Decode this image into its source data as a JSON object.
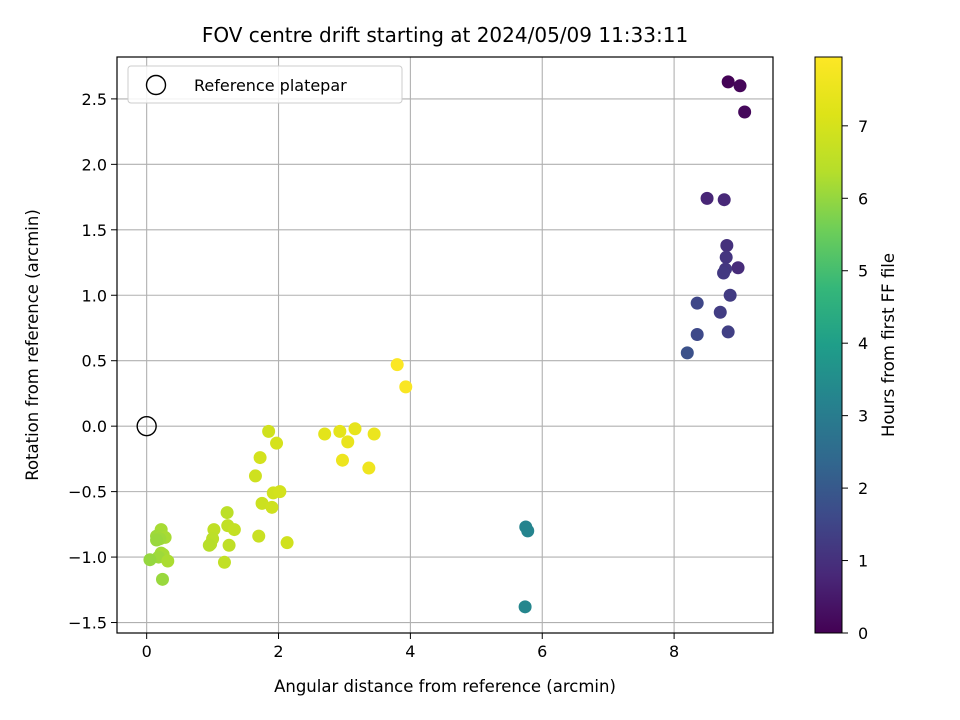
{
  "chart_data": {
    "type": "scatter",
    "title": "FOV centre drift starting at 2024/05/09 11:33:11",
    "xlabel": "Angular distance from reference (arcmin)",
    "ylabel": "Rotation from reference (arcmin)",
    "xlim": [
      -0.45,
      9.5
    ],
    "ylim": [
      -1.58,
      2.82
    ],
    "xticks": [
      0,
      2,
      4,
      6,
      8
    ],
    "xtick_labels": [
      "0",
      "2",
      "4",
      "6",
      "8"
    ],
    "yticks": [
      -1.5,
      -1.0,
      -0.5,
      0.0,
      0.5,
      1.0,
      1.5,
      2.0,
      2.5
    ],
    "ytick_labels": [
      "−1.5",
      "−1.0",
      "−0.5",
      "0.0",
      "0.5",
      "1.0",
      "1.5",
      "2.0",
      "2.5"
    ],
    "grid": true,
    "legend": {
      "label": "Reference platepar",
      "placement": "top-left"
    },
    "reference_point": {
      "x": 0,
      "y": 0
    },
    "colorbar": {
      "label": "Hours from first FF file",
      "colormap": "viridis",
      "range": [
        0,
        7.95
      ],
      "ticks": [
        0,
        1,
        2,
        3,
        4,
        5,
        6,
        7
      ],
      "tick_labels": [
        "0",
        "1",
        "2",
        "3",
        "4",
        "5",
        "6",
        "7"
      ]
    },
    "points": [
      {
        "x": 8.82,
        "y": 2.63,
        "h": 0.05
      },
      {
        "x": 9.0,
        "y": 2.6,
        "h": 0.1
      },
      {
        "x": 9.07,
        "y": 2.4,
        "h": 0.15
      },
      {
        "x": 8.5,
        "y": 1.74,
        "h": 0.75
      },
      {
        "x": 8.76,
        "y": 1.73,
        "h": 0.8
      },
      {
        "x": 8.8,
        "y": 1.38,
        "h": 1.0
      },
      {
        "x": 8.79,
        "y": 1.29,
        "h": 1.1
      },
      {
        "x": 8.97,
        "y": 1.21,
        "h": 0.9
      },
      {
        "x": 8.78,
        "y": 1.2,
        "h": 1.15
      },
      {
        "x": 8.75,
        "y": 1.17,
        "h": 1.2
      },
      {
        "x": 8.85,
        "y": 1.0,
        "h": 1.25
      },
      {
        "x": 8.35,
        "y": 0.94,
        "h": 1.55
      },
      {
        "x": 8.7,
        "y": 0.87,
        "h": 1.3
      },
      {
        "x": 8.82,
        "y": 0.72,
        "h": 1.35
      },
      {
        "x": 8.35,
        "y": 0.7,
        "h": 1.6
      },
      {
        "x": 8.2,
        "y": 0.56,
        "h": 1.8
      },
      {
        "x": 5.75,
        "y": -0.77,
        "h": 3.2
      },
      {
        "x": 5.78,
        "y": -0.8,
        "h": 3.25
      },
      {
        "x": 5.74,
        "y": -1.38,
        "h": 3.3
      },
      {
        "x": 3.8,
        "y": 0.47,
        "h": 7.9
      },
      {
        "x": 3.93,
        "y": 0.3,
        "h": 7.85
      },
      {
        "x": 2.7,
        "y": -0.06,
        "h": 7.3
      },
      {
        "x": 2.93,
        "y": -0.04,
        "h": 7.35
      },
      {
        "x": 3.16,
        "y": -0.02,
        "h": 7.4
      },
      {
        "x": 3.45,
        "y": -0.06,
        "h": 7.5
      },
      {
        "x": 3.05,
        "y": -0.12,
        "h": 7.45
      },
      {
        "x": 2.97,
        "y": -0.26,
        "h": 7.55
      },
      {
        "x": 3.37,
        "y": -0.32,
        "h": 7.6
      },
      {
        "x": 1.85,
        "y": -0.04,
        "h": 6.9
      },
      {
        "x": 1.97,
        "y": -0.13,
        "h": 7.0
      },
      {
        "x": 1.72,
        "y": -0.24,
        "h": 6.95
      },
      {
        "x": 1.65,
        "y": -0.38,
        "h": 6.85
      },
      {
        "x": 1.92,
        "y": -0.51,
        "h": 6.9
      },
      {
        "x": 2.02,
        "y": -0.5,
        "h": 6.95
      },
      {
        "x": 1.75,
        "y": -0.59,
        "h": 6.8
      },
      {
        "x": 1.9,
        "y": -0.62,
        "h": 6.85
      },
      {
        "x": 1.7,
        "y": -0.84,
        "h": 6.75
      },
      {
        "x": 2.13,
        "y": -0.89,
        "h": 6.9
      },
      {
        "x": 1.22,
        "y": -0.66,
        "h": 6.5
      },
      {
        "x": 1.02,
        "y": -0.79,
        "h": 6.55
      },
      {
        "x": 1.23,
        "y": -0.76,
        "h": 6.6
      },
      {
        "x": 1.33,
        "y": -0.79,
        "h": 6.65
      },
      {
        "x": 1.0,
        "y": -0.86,
        "h": 6.5
      },
      {
        "x": 0.97,
        "y": -0.9,
        "h": 6.45
      },
      {
        "x": 0.95,
        "y": -0.91,
        "h": 6.4
      },
      {
        "x": 1.25,
        "y": -0.91,
        "h": 6.55
      },
      {
        "x": 1.18,
        "y": -1.04,
        "h": 6.6
      },
      {
        "x": 0.22,
        "y": -0.79,
        "h": 6.2
      },
      {
        "x": 0.15,
        "y": -0.84,
        "h": 6.1
      },
      {
        "x": 0.22,
        "y": -0.84,
        "h": 6.15
      },
      {
        "x": 0.28,
        "y": -0.85,
        "h": 6.2
      },
      {
        "x": 0.2,
        "y": -0.86,
        "h": 6.1
      },
      {
        "x": 0.15,
        "y": -0.87,
        "h": 6.05
      },
      {
        "x": 0.22,
        "y": -0.97,
        "h": 6.15
      },
      {
        "x": 0.25,
        "y": -0.98,
        "h": 6.2
      },
      {
        "x": 0.18,
        "y": -1.0,
        "h": 6.1
      },
      {
        "x": 0.05,
        "y": -1.02,
        "h": 6.0
      },
      {
        "x": 0.32,
        "y": -1.03,
        "h": 6.25
      },
      {
        "x": 0.24,
        "y": -1.17,
        "h": 6.05
      }
    ]
  }
}
